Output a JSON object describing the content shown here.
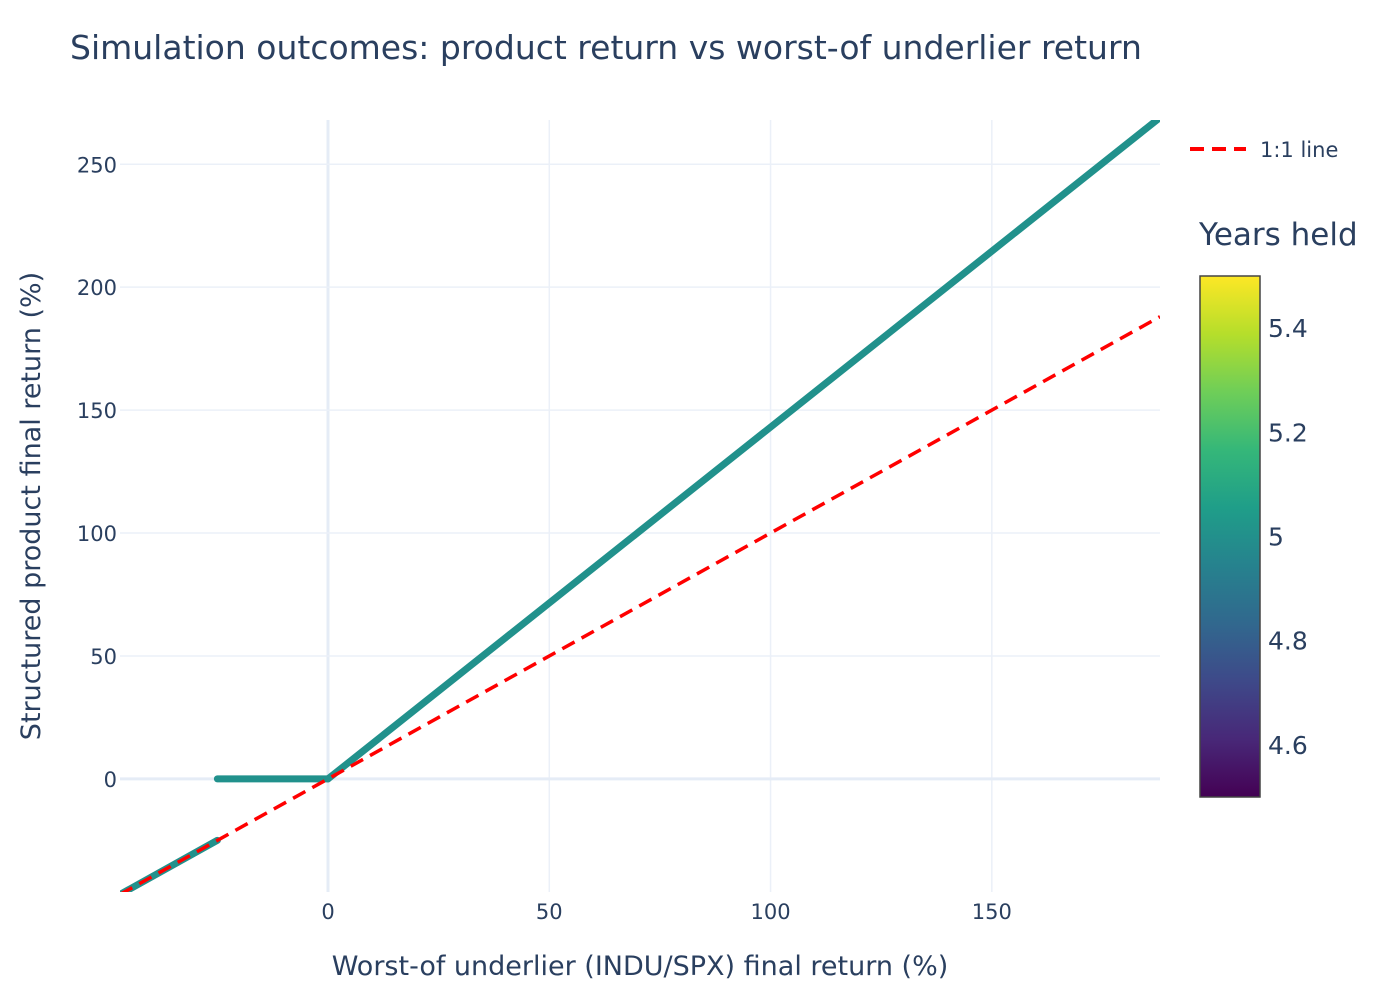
{
  "chart_data": {
    "type": "scatter",
    "title": "Simulation outcomes: product return vs worst-of underlier return",
    "xlabel": "Worst-of underlier (INDU/SPX) final return (%)",
    "ylabel": "Structured product final return (%)",
    "xlim": [
      -47,
      188
    ],
    "ylim": [
      -46,
      268
    ],
    "xticks": [
      0,
      50,
      100,
      150
    ],
    "yticks": [
      0,
      50,
      100,
      150,
      200,
      250
    ],
    "grid": true,
    "legend_position": "top-right",
    "series": [
      {
        "name": "",
        "marker_color_value": 5,
        "segments": [
          {
            "x": [
              -47,
              -25
            ],
            "y": [
              -47,
              -25
            ]
          },
          {
            "x": [
              -25,
              0
            ],
            "y": [
              0,
              0
            ]
          },
          {
            "x": [
              0,
              188
            ],
            "y": [
              0,
              269
            ]
          }
        ]
      },
      {
        "name": "1:1 line",
        "style": "dashed",
        "color": "#ff0000",
        "x": [
          -47,
          188
        ],
        "y": [
          -47,
          188
        ]
      }
    ],
    "colorbar": {
      "title": "Years held",
      "colorscale": "viridis",
      "range": [
        4.5,
        5.5
      ],
      "ticks": [
        "4.6",
        "4.8",
        "5",
        "5.2",
        "5.4"
      ],
      "tick_values": [
        4.6,
        4.8,
        5.0,
        5.2,
        5.4
      ]
    }
  },
  "colors": {
    "points": "#21918c",
    "identity_line": "#ff0000",
    "grid": "#ebf0f8",
    "zeroline": "#e5ecf6",
    "text": "#2a3f5f"
  }
}
